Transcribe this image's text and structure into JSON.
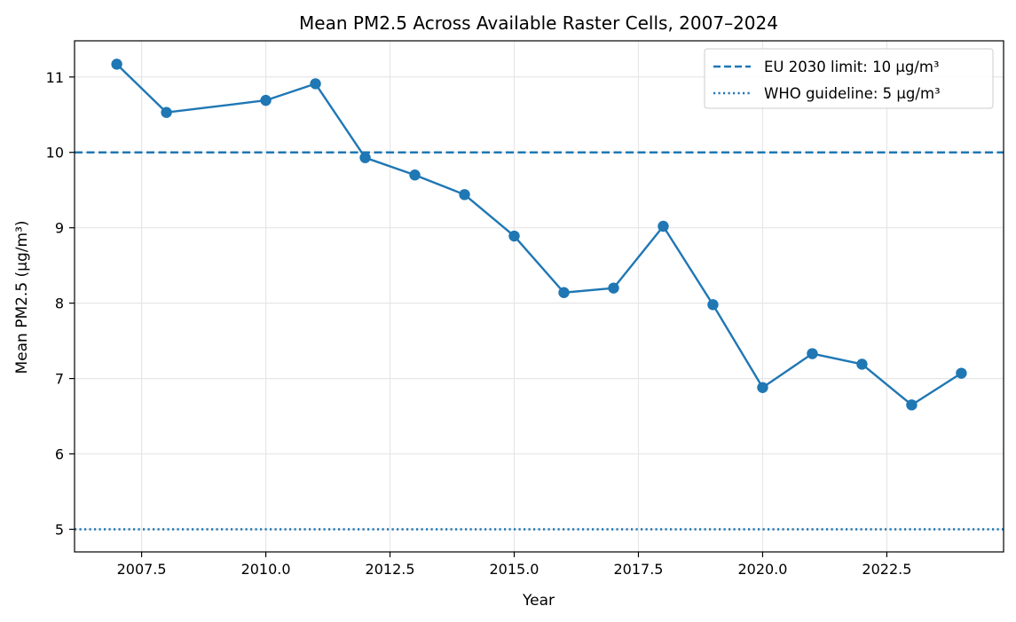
{
  "chart_data": {
    "type": "line",
    "title": "Mean PM2.5 Across Available Raster Cells, 2007–2024",
    "xlabel": "Year",
    "ylabel": "Mean PM2.5 (µg/m³)",
    "xlim": [
      2006.15,
      2024.85
    ],
    "ylim": [
      4.7,
      11.48
    ],
    "x_ticks": [
      2007.5,
      2010.0,
      2012.5,
      2015.0,
      2017.5,
      2020.0,
      2022.5
    ],
    "x_tick_labels": [
      "2007.5",
      "2010.0",
      "2012.5",
      "2015.0",
      "2017.5",
      "2020.0",
      "2022.5"
    ],
    "y_ticks": [
      5,
      6,
      7,
      8,
      9,
      10,
      11
    ],
    "y_tick_labels": [
      "5",
      "6",
      "7",
      "8",
      "9",
      "10",
      "11"
    ],
    "grid": true,
    "legend_position": "top-right",
    "series": [
      {
        "x": [
          2007,
          2008,
          2010,
          2011,
          2012,
          2013,
          2014,
          2015,
          2016,
          2017,
          2018,
          2019,
          2020,
          2021,
          2022,
          2023,
          2024
        ],
        "values": [
          11.17,
          10.53,
          10.69,
          10.91,
          9.93,
          9.7,
          9.44,
          8.89,
          8.14,
          8.2,
          9.02,
          7.98,
          6.88,
          7.33,
          7.19,
          6.65,
          7.07
        ],
        "color": "#1f77b4",
        "marker": "circle"
      }
    ],
    "reference_lines": [
      {
        "name": "EU 2030 limit: 10 µg/m³",
        "y": 10,
        "style": "dashed",
        "color": "#1f77b4"
      },
      {
        "name": "WHO guideline: 5 µg/m³",
        "y": 5,
        "style": "dotted",
        "color": "#1f77b4"
      }
    ]
  }
}
